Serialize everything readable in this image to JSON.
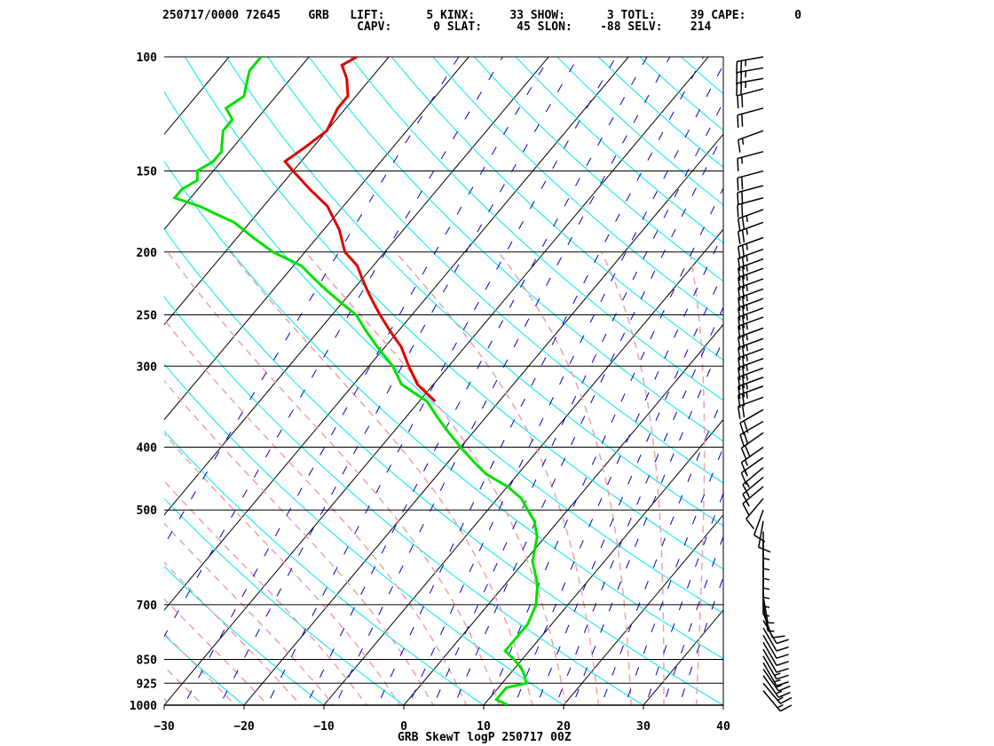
{
  "header": {
    "line1": "250717/0000 72645    GRB   LIFT:      5 KINX:     33 SHOW:      3 TOTL:     39 CAPE:       0",
    "line2": "                            CAPV:      0 SLAT:     45 SLON:    -88 SELV:    214"
  },
  "footer": "GRB SkewT logP 250717 00Z",
  "colors": {
    "temperature": "#e00000",
    "dewpoint": "#00e000",
    "isotherm": "#000000",
    "dry_adiabat": "#00e8e8",
    "moist_adiabat": "#f0a0a8",
    "mixing_ratio": "#0000c8",
    "isobar": "#000000",
    "wind_barb": "#000000"
  },
  "chart_data": {
    "type": "line",
    "title": "GRB SkewT logP 250717 00Z",
    "x_axis": {
      "label": "",
      "range": [
        -30,
        40
      ],
      "ticks": [
        -30,
        -20,
        -10,
        0,
        10,
        20,
        30,
        40
      ]
    },
    "y_axis": {
      "label": "",
      "scale": "log",
      "range": [
        1000,
        100
      ],
      "ticks": [
        100,
        150,
        200,
        250,
        300,
        400,
        500,
        700,
        850,
        925,
        1000
      ]
    },
    "grid": true,
    "series": [
      {
        "name": "",
        "color_key": "temperature",
        "pressure": [
          100,
          103,
          108,
          115,
          120,
          130,
          138,
          145,
          150,
          160,
          170,
          185,
          200,
          210,
          220,
          230,
          240,
          250,
          265,
          280,
          300,
          320,
          340
        ],
        "values": [
          -74,
          -75,
          -73,
          -71,
          -71,
          -70,
          -71,
          -72,
          -70,
          -66,
          -62,
          -58,
          -55,
          -52,
          -50,
          -48,
          -46,
          -44,
          -41,
          -38,
          -35,
          -32,
          -28
        ]
      },
      {
        "name": "",
        "color_key": "dewpoint",
        "pressure": [
          100,
          105,
          110,
          115,
          120,
          125,
          130,
          135,
          140,
          145,
          150,
          155,
          160,
          165,
          170,
          175,
          180,
          190,
          200,
          210,
          220,
          230,
          240,
          250,
          265,
          280,
          300,
          320,
          340,
          360,
          380,
          400,
          420,
          440,
          460,
          480,
          500,
          520,
          550,
          600,
          650,
          700,
          750,
          800,
          825,
          850,
          880,
          900,
          925,
          940,
          960,
          980,
          990,
          1000
        ],
        "values": [
          -86,
          -86,
          -85,
          -84,
          -85,
          -83,
          -83,
          -82,
          -81,
          -81,
          -82,
          -81,
          -82,
          -82,
          -78,
          -75,
          -72,
          -68,
          -64,
          -59,
          -56,
          -53,
          -50,
          -47,
          -44,
          -41,
          -37,
          -34,
          -29,
          -26,
          -23,
          -20,
          -17,
          -14,
          -10,
          -7,
          -5,
          -3,
          -1,
          1,
          4,
          6,
          7,
          7,
          7,
          9,
          11,
          12,
          13,
          11,
          11,
          11,
          12,
          13
        ]
      }
    ],
    "wind_profile": {
      "speed_units": "kt",
      "pressure": [
        100,
        104,
        108,
        112,
        120,
        130,
        140,
        150,
        158,
        165,
        172,
        180,
        190,
        198,
        205,
        212,
        220,
        228,
        236,
        244,
        252,
        262,
        272,
        282,
        292,
        302,
        312,
        322,
        335,
        350,
        365,
        380,
        400,
        415,
        430,
        445,
        460,
        480,
        500,
        520,
        540,
        560,
        580,
        600,
        620,
        640,
        660,
        680,
        700,
        720,
        740,
        760,
        780,
        800,
        820,
        840,
        860,
        880,
        900,
        925,
        950
      ],
      "direction_deg": [
        260,
        260,
        260,
        255,
        255,
        250,
        255,
        255,
        255,
        255,
        250,
        250,
        250,
        250,
        250,
        250,
        250,
        250,
        250,
        250,
        250,
        250,
        250,
        250,
        250,
        250,
        250,
        250,
        250,
        240,
        240,
        235,
        235,
        235,
        230,
        230,
        230,
        220,
        200,
        190,
        180,
        180,
        180,
        180,
        180,
        180,
        180,
        170,
        170,
        160,
        150,
        150,
        150,
        150,
        150,
        150,
        150,
        145,
        145,
        140,
        140
      ],
      "speed": [
        25,
        25,
        25,
        20,
        20,
        15,
        15,
        20,
        20,
        20,
        25,
        25,
        25,
        25,
        25,
        25,
        25,
        25,
        25,
        25,
        25,
        25,
        25,
        25,
        25,
        25,
        25,
        25,
        20,
        20,
        20,
        20,
        15,
        15,
        15,
        15,
        15,
        10,
        10,
        10,
        5,
        5,
        5,
        5,
        5,
        5,
        5,
        5,
        5,
        10,
        10,
        10,
        10,
        10,
        10,
        15,
        15,
        15,
        15,
        15,
        15
      ]
    }
  }
}
